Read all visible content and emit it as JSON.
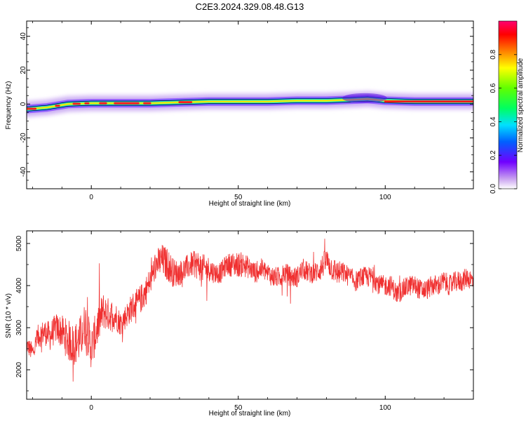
{
  "title": "C2E3.2024.329.08.48.G13",
  "spectrogram": {
    "type": "heatmap",
    "xlabel": "Height of straight line (km)",
    "ylabel": "Frequency (Hz)",
    "xlim": [
      -22,
      130
    ],
    "ylim": [
      -50,
      49
    ],
    "xticks": [
      0,
      50,
      100
    ],
    "yticks": [
      -40,
      -20,
      0,
      20,
      40
    ],
    "track": [
      [
        -22,
        -3
      ],
      [
        -15,
        -2
      ],
      [
        -8,
        0
      ],
      [
        0,
        0.5
      ],
      [
        10,
        0.5
      ],
      [
        20,
        0.5
      ],
      [
        30,
        1
      ],
      [
        40,
        1.5
      ],
      [
        50,
        1.5
      ],
      [
        60,
        1.5
      ],
      [
        70,
        2
      ],
      [
        80,
        2
      ],
      [
        88,
        2.5
      ],
      [
        94,
        3
      ],
      [
        100,
        2
      ],
      [
        110,
        1.5
      ],
      [
        120,
        1.5
      ],
      [
        130,
        1.5
      ]
    ],
    "colorbar": {
      "label": "Normalized spectral amplitude",
      "ticks": [
        "0.0",
        "0.2",
        "0.4",
        "0.6",
        "0.8"
      ],
      "range": [
        0,
        1
      ]
    }
  },
  "snr": {
    "type": "line",
    "xlabel": "Height of straight line (km)",
    "ylabel": "SNR (10 * v/v)",
    "xlim": [
      -22,
      130
    ],
    "ylim": [
      1300,
      5300
    ],
    "xticks": [
      0,
      50,
      100
    ],
    "yticks": [
      2000,
      3000,
      4000,
      5000
    ],
    "color": "#f03030",
    "x": [
      -22,
      -20,
      -18,
      -16,
      -14,
      -12,
      -10,
      -8,
      -6,
      -4,
      -2,
      0,
      2,
      4,
      6,
      8,
      10,
      12,
      14,
      16,
      18,
      20,
      22,
      24,
      26,
      28,
      30,
      32,
      34,
      36,
      38,
      40,
      42,
      44,
      46,
      48,
      50,
      52,
      54,
      56,
      58,
      60,
      62,
      64,
      66,
      68,
      70,
      72,
      74,
      76,
      78,
      80,
      82,
      84,
      86,
      88,
      90,
      92,
      94,
      96,
      98,
      100,
      102,
      104,
      106,
      108,
      110,
      112,
      114,
      116,
      118,
      120,
      122,
      124,
      126,
      128,
      130
    ],
    "y": [
      2600,
      2400,
      2800,
      2900,
      2800,
      3000,
      2900,
      2700,
      2600,
      2700,
      3100,
      2500,
      3000,
      3400,
      3300,
      3300,
      3100,
      3300,
      3500,
      3600,
      3800,
      4100,
      4500,
      4600,
      4500,
      4300,
      4300,
      4400,
      4500,
      4500,
      4400,
      4400,
      4300,
      4300,
      4500,
      4500,
      4500,
      4500,
      4400,
      4300,
      4400,
      4300,
      4200,
      4200,
      4300,
      4200,
      4200,
      4400,
      4300,
      4300,
      4400,
      4600,
      4400,
      4300,
      4300,
      4200,
      4100,
      4200,
      4200,
      4200,
      4000,
      4000,
      4000,
      3800,
      3900,
      4000,
      4000,
      3900,
      3900,
      4000,
      4000,
      4100,
      4000,
      4100,
      4100,
      4200,
      4100
    ],
    "noise": [
      200,
      250,
      300,
      300,
      350,
      350,
      400,
      500,
      500,
      550,
      550,
      500,
      500,
      450,
      400,
      350,
      300,
      300,
      350,
      350,
      350,
      350,
      350,
      400,
      400,
      350,
      300,
      300,
      300,
      350,
      350,
      300,
      250,
      250,
      250,
      300,
      300,
      300,
      250,
      250,
      250,
      250,
      250,
      250,
      250,
      250,
      250,
      250,
      250,
      250,
      300,
      300,
      300,
      300,
      250,
      250,
      250,
      250,
      250,
      250,
      250,
      250,
      250,
      250,
      250,
      250,
      250,
      250,
      250,
      250,
      250,
      250,
      250,
      250,
      250,
      250,
      250
    ]
  }
}
